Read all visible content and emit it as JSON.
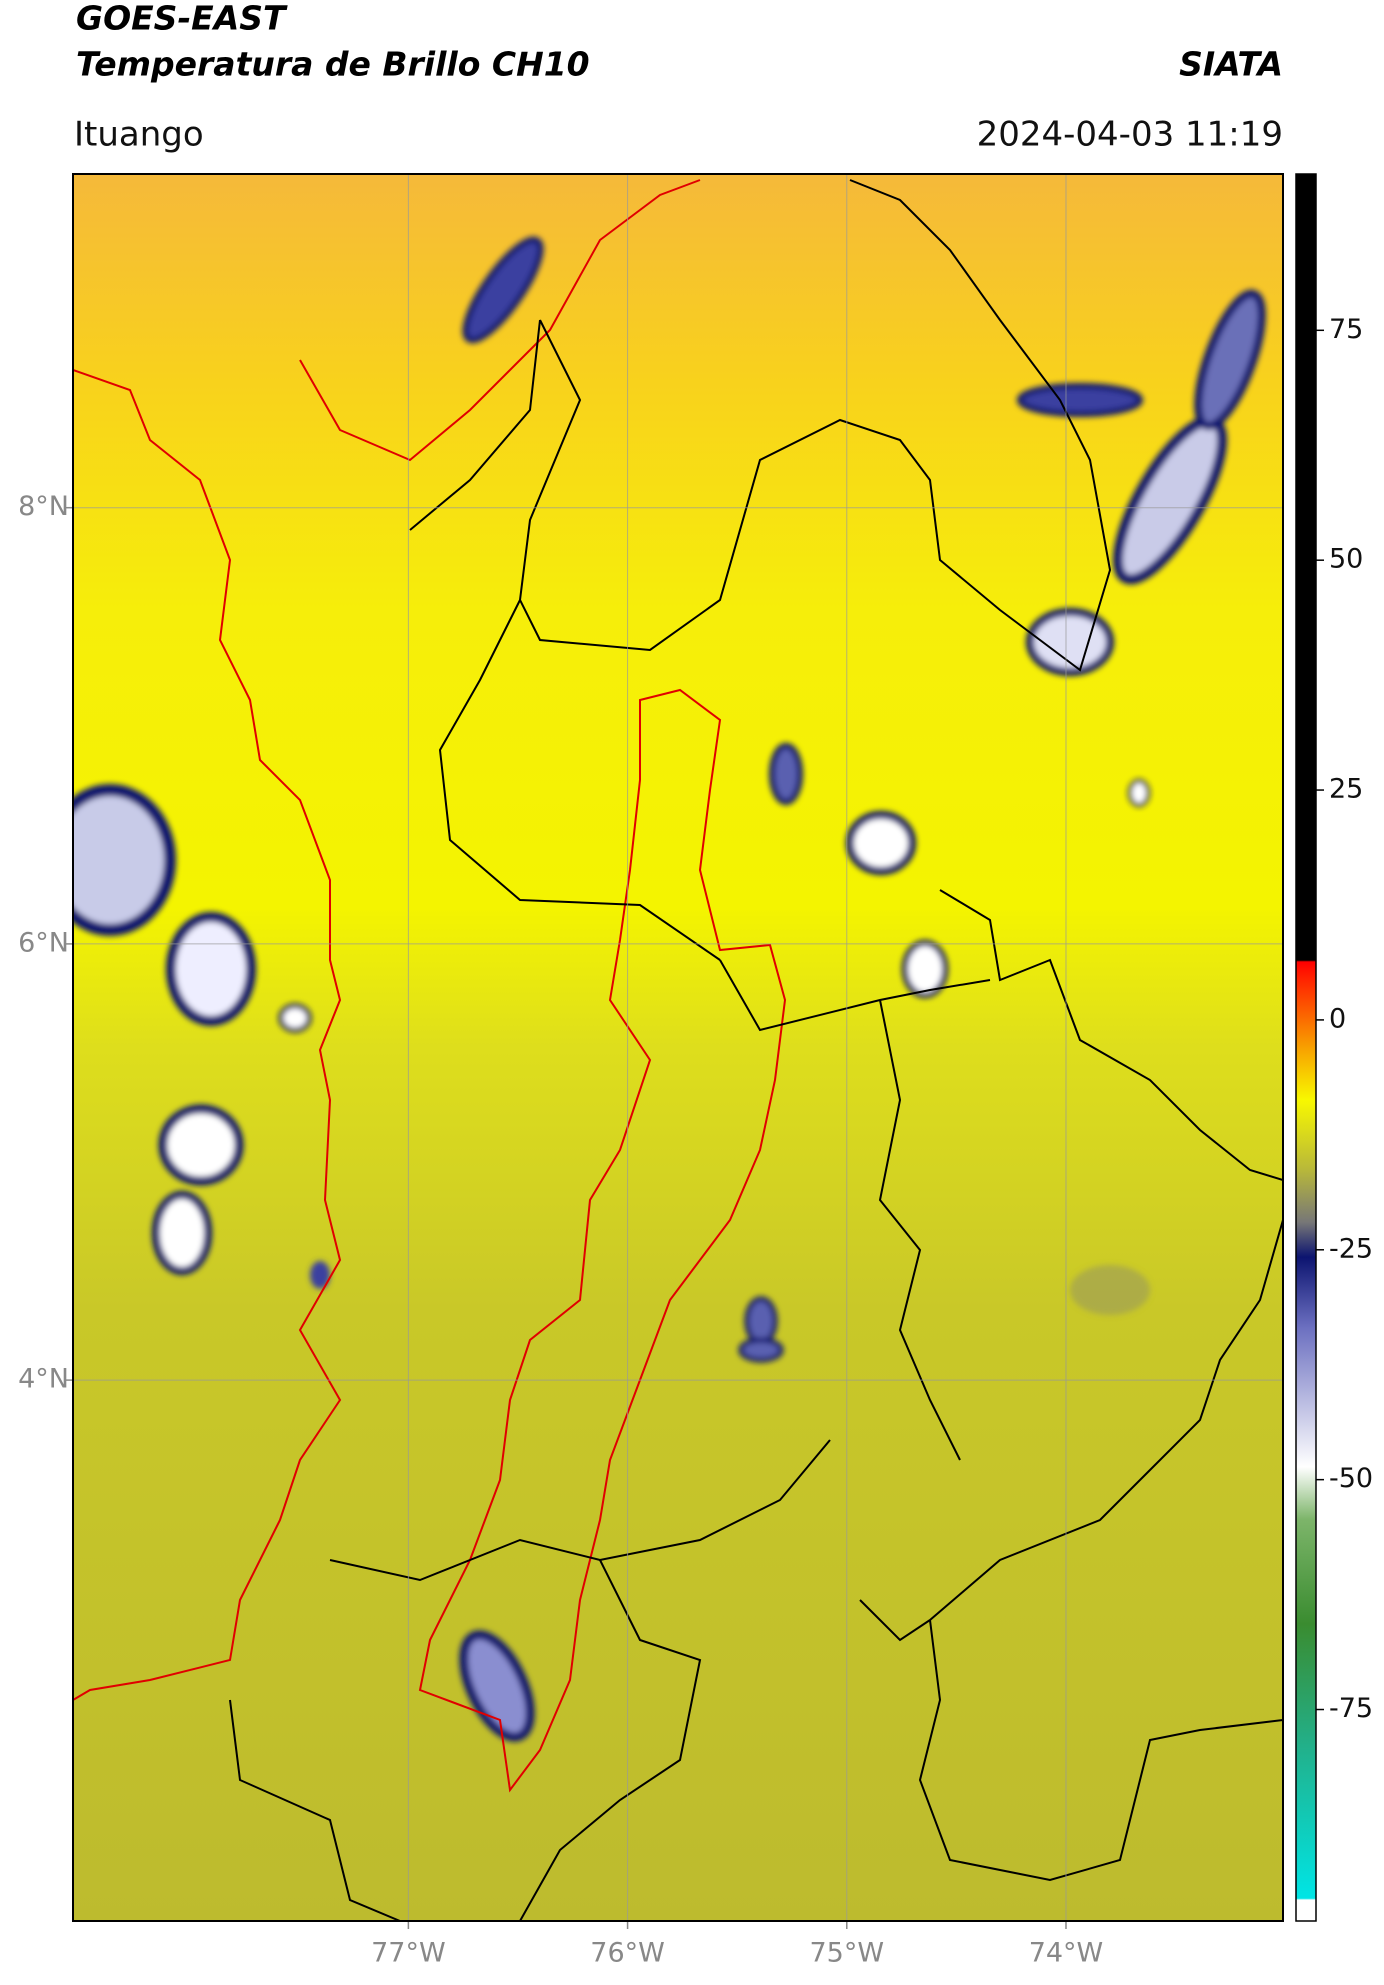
{
  "header": {
    "title": "GOES-EAST",
    "subtitle": "Temperatura de Brillo CH10",
    "source": "SIATA",
    "location": "Ituango",
    "datetime": "2024-04-03 11:19"
  },
  "map": {
    "lonlim": [
      -78.53,
      -73.01
    ],
    "latlim": [
      1.52,
      9.53
    ],
    "xticks": [
      {
        "value": -77,
        "label": "77°W"
      },
      {
        "value": -76,
        "label": "76°W"
      },
      {
        "value": -75,
        "label": "75°W"
      },
      {
        "value": -74,
        "label": "74°W"
      }
    ],
    "yticks": [
      {
        "value": 8,
        "label": "8°N"
      },
      {
        "value": 6,
        "label": "6°N"
      },
      {
        "value": 4,
        "label": "4°N"
      }
    ],
    "grid": true
  },
  "colorbar": {
    "lim": [
      -98,
      92
    ],
    "ticks": [
      75,
      50,
      25,
      0,
      -25,
      -50,
      -75
    ]
  }
}
